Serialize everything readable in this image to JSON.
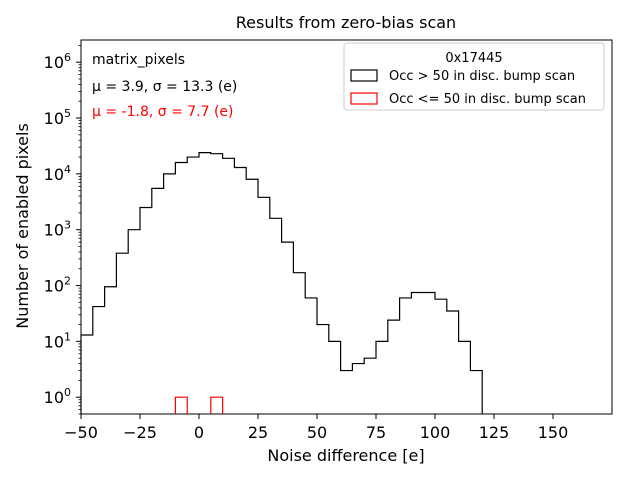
{
  "chart_data": {
    "type": "histogram",
    "title": "Results from zero-bias scan",
    "xlabel": "Noise difference [e]",
    "ylabel": "Number of enabled pixels",
    "xlim": [
      -50,
      175
    ],
    "ylim": [
      0.5,
      2500000
    ],
    "yscale": "log",
    "bin_width": 5,
    "x_ticks": [
      -50,
      -25,
      0,
      25,
      50,
      75,
      100,
      125,
      150
    ],
    "x_tick_labels": [
      "−50",
      "−25",
      "0",
      "25",
      "50",
      "75",
      "100",
      "125",
      "150"
    ],
    "y_ticks": [
      1,
      10,
      100,
      1000,
      10000,
      100000,
      1000000
    ],
    "y_tick_labels": [
      "10^0",
      "10^1",
      "10^2",
      "10^3",
      "10^4",
      "10^5",
      "10^6"
    ],
    "annotations": {
      "name": "matrix_pixels",
      "stats": [
        {
          "text": "μ = 3.9, σ = 13.3 (e)",
          "color": "#000000"
        },
        {
          "text": "μ = -1.8, σ = 7.7 (e)",
          "color": "#ff0000"
        }
      ]
    },
    "legend": {
      "title": "0x17445",
      "position": "top-right"
    },
    "series": [
      {
        "name": "Occ > 50 in disc. bump scan",
        "color": "#000000",
        "bin_edges": [
          -50,
          -45,
          -40,
          -35,
          -30,
          -25,
          -20,
          -15,
          -10,
          -5,
          0,
          5,
          10,
          15,
          20,
          25,
          30,
          35,
          40,
          45,
          50,
          55,
          60,
          65,
          70,
          75,
          80,
          85,
          90,
          95,
          100,
          105,
          110,
          115,
          120
        ],
        "counts": [
          13,
          42,
          95,
          380,
          1000,
          2500,
          5500,
          10000,
          16000,
          20000,
          24000,
          23000,
          19000,
          13000,
          8000,
          3800,
          1600,
          600,
          170,
          60,
          20,
          10,
          3,
          4,
          5,
          10,
          24,
          60,
          75,
          75,
          57,
          35,
          10,
          3
        ]
      },
      {
        "name": "Occ <= 50 in disc. bump scan",
        "color": "#ff0000",
        "bin_edges": [
          -10,
          -5,
          0,
          5,
          10
        ],
        "counts": [
          1,
          0,
          0,
          1
        ]
      }
    ]
  }
}
